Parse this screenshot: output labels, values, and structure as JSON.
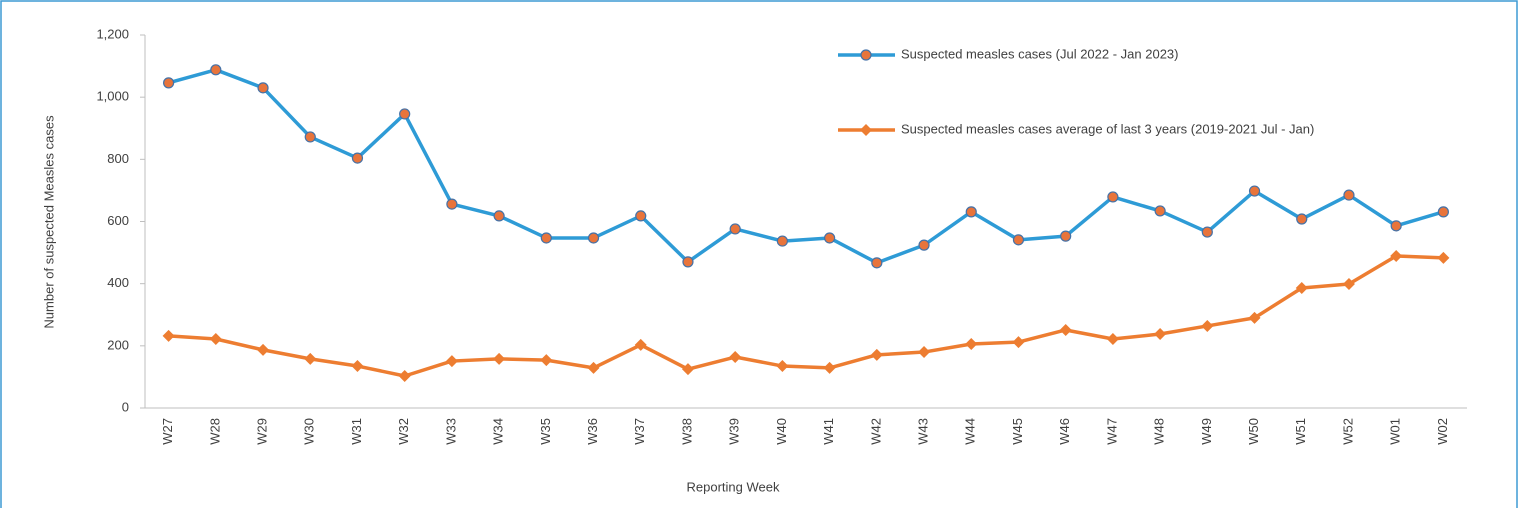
{
  "chart_data": {
    "type": "line",
    "x_label": "Reporting Week",
    "y_label": "Number of suspected Measles cases",
    "categories": [
      "W27",
      "W28",
      "W29",
      "W30",
      "W31",
      "W32",
      "W33",
      "W34",
      "W35",
      "W36",
      "W37",
      "W38",
      "W39",
      "W40",
      "W41",
      "W42",
      "W43",
      "W44",
      "W45",
      "W46",
      "W47",
      "W48",
      "W49",
      "W50",
      "W51",
      "W52",
      "W01",
      "W02"
    ],
    "series": [
      {
        "name": "Suspected measles cases (Jul 2022 - Jan 2023)",
        "color": "#2e9bd6",
        "marker": "circle",
        "marker_color": "#e8743b",
        "values": [
          1046,
          1088,
          1030,
          872,
          804,
          946,
          656,
          618,
          547,
          547,
          618,
          470,
          576,
          537,
          547,
          467,
          524,
          631,
          541,
          553,
          679,
          634,
          566,
          698,
          608,
          685,
          586,
          631
        ]
      },
      {
        "name": "Suspected measles cases average of last 3 years (2019-2021 Jul - Jan)",
        "color": "#ed7d31",
        "marker": "diamond",
        "marker_color": "#ed7d31",
        "values": [
          232,
          222,
          187,
          158,
          135,
          103,
          151,
          158,
          154,
          129,
          203,
          125,
          164,
          135,
          129,
          171,
          180,
          206,
          212,
          251,
          222,
          238,
          264,
          290,
          386,
          399,
          489,
          483
        ]
      }
    ],
    "ylim": [
      0,
      1200
    ],
    "yticks": [
      0,
      200,
      400,
      600,
      800,
      {
        "value": 1000,
        "label": "1,000"
      },
      {
        "value": 1200,
        "label": "1,200"
      }
    ]
  }
}
